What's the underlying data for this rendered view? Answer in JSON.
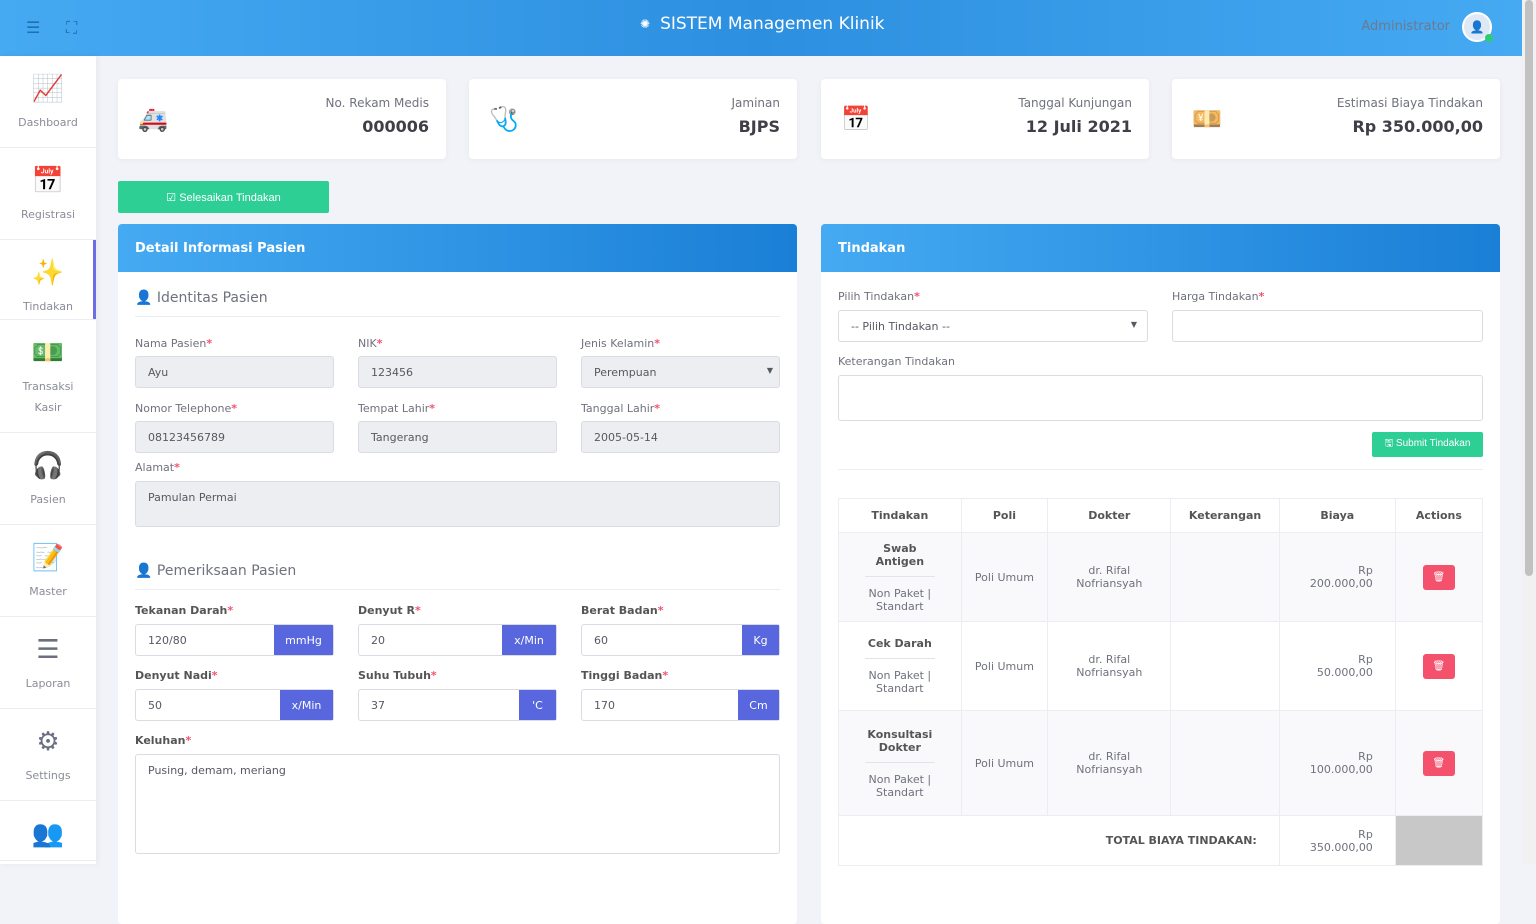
{
  "header": {
    "title": "SISTEM Managemen Klinik",
    "user": "Administrator"
  },
  "sidebar": [
    {
      "label": "Dashboard",
      "icon": "chart-line-icon",
      "glyph": "📈"
    },
    {
      "label": "Registrasi",
      "icon": "calendar-icon",
      "glyph": "📅"
    },
    {
      "label": "Tindakan",
      "icon": "magic-wand-icon",
      "glyph": "✨"
    },
    {
      "label": "Transaksi Kasir",
      "icon": "money-icon",
      "glyph": "💵"
    },
    {
      "label": "Pasien",
      "icon": "headset-icon",
      "glyph": "🎧"
    },
    {
      "label": "Master",
      "icon": "edit-icon",
      "glyph": "📝"
    },
    {
      "label": "Laporan",
      "icon": "list-icon",
      "glyph": "☰"
    },
    {
      "label": "Settings",
      "icon": "gears-icon",
      "glyph": "⚙"
    },
    {
      "label": "",
      "icon": "users-icon",
      "glyph": "👥"
    }
  ],
  "cards": [
    {
      "label": "No. Rekam Medis",
      "value": "000006",
      "color": "#2ecf94"
    },
    {
      "label": "Jaminan",
      "value": "BJPS",
      "color": "#f4875c"
    },
    {
      "label": "Tanggal Kunjungan",
      "value": "12 Juli 2021",
      "color": "#1e8ce0"
    },
    {
      "label": "Estimasi Biaya Tindakan",
      "value": "Rp 350.000,00",
      "color": "#f4516c"
    }
  ],
  "finish_button": "Selesaikan Tindakan",
  "patient": {
    "title": "Detail Informasi Pasien",
    "identity_title": "Identitas Pasien",
    "exam_title": "Pemeriksaan Pasien",
    "fields": {
      "nama": {
        "label": "Nama Pasien",
        "value": "Ayu"
      },
      "nik": {
        "label": "NIK",
        "value": "123456"
      },
      "jk": {
        "label": "Jenis Kelamin",
        "value": "Perempuan"
      },
      "telp": {
        "label": "Nomor Telephone",
        "value": "08123456789"
      },
      "tempat": {
        "label": "Tempat Lahir",
        "value": "Tangerang"
      },
      "tgl": {
        "label": "Tanggal Lahir",
        "value": "2005-05-14"
      },
      "alamat": {
        "label": "Alamat",
        "value": "Pamulan Permai"
      }
    },
    "exam": {
      "td": {
        "label": "Tekanan Darah",
        "value": "120/80",
        "unit": "mmHg"
      },
      "dr": {
        "label": "Denyut R",
        "value": "20",
        "unit": "x/Min"
      },
      "bb": {
        "label": "Berat Badan",
        "value": "60",
        "unit": "Kg"
      },
      "dn": {
        "label": "Denyut Nadi",
        "value": "50",
        "unit": "x/Min"
      },
      "st": {
        "label": "Suhu Tubuh",
        "value": "37",
        "unit": "'C"
      },
      "tb": {
        "label": "Tinggi Badan",
        "value": "170",
        "unit": "Cm"
      },
      "keluhan": {
        "label": "Keluhan",
        "value": "Pusing, demam, meriang"
      }
    }
  },
  "tindakan": {
    "title": "Tindakan",
    "pilih_label": "Pilih Tindakan",
    "pilih_value": "-- Pilih Tindakan --",
    "harga_label": "Harga Tindakan",
    "ket_label": "Keterangan Tindakan",
    "submit": "Submit Tindakan",
    "columns": [
      "Tindakan",
      "Poli",
      "Dokter",
      "Keterangan",
      "Biaya",
      "Actions"
    ],
    "rows": [
      {
        "name": "Swab Antigen",
        "type": "Non Paket | Standart",
        "poli": "Poli Umum",
        "dokter": "dr. Rifal Nofriansyah",
        "ket": "",
        "biaya": "Rp 200.000,00"
      },
      {
        "name": "Cek Darah",
        "type": "Non Paket | Standart",
        "poli": "Poli Umum",
        "dokter": "dr. Rifal Nofriansyah",
        "ket": "",
        "biaya": "Rp 50.000,00"
      },
      {
        "name": "Konsultasi Dokter",
        "type": "Non Paket | Standart",
        "poli": "Poli Umum",
        "dokter": "dr. Rifal Nofriansyah",
        "ket": "",
        "biaya": "Rp 100.000,00"
      }
    ],
    "total_label": "TOTAL BIAYA TINDAKAN:",
    "total": "Rp 350.000,00"
  }
}
